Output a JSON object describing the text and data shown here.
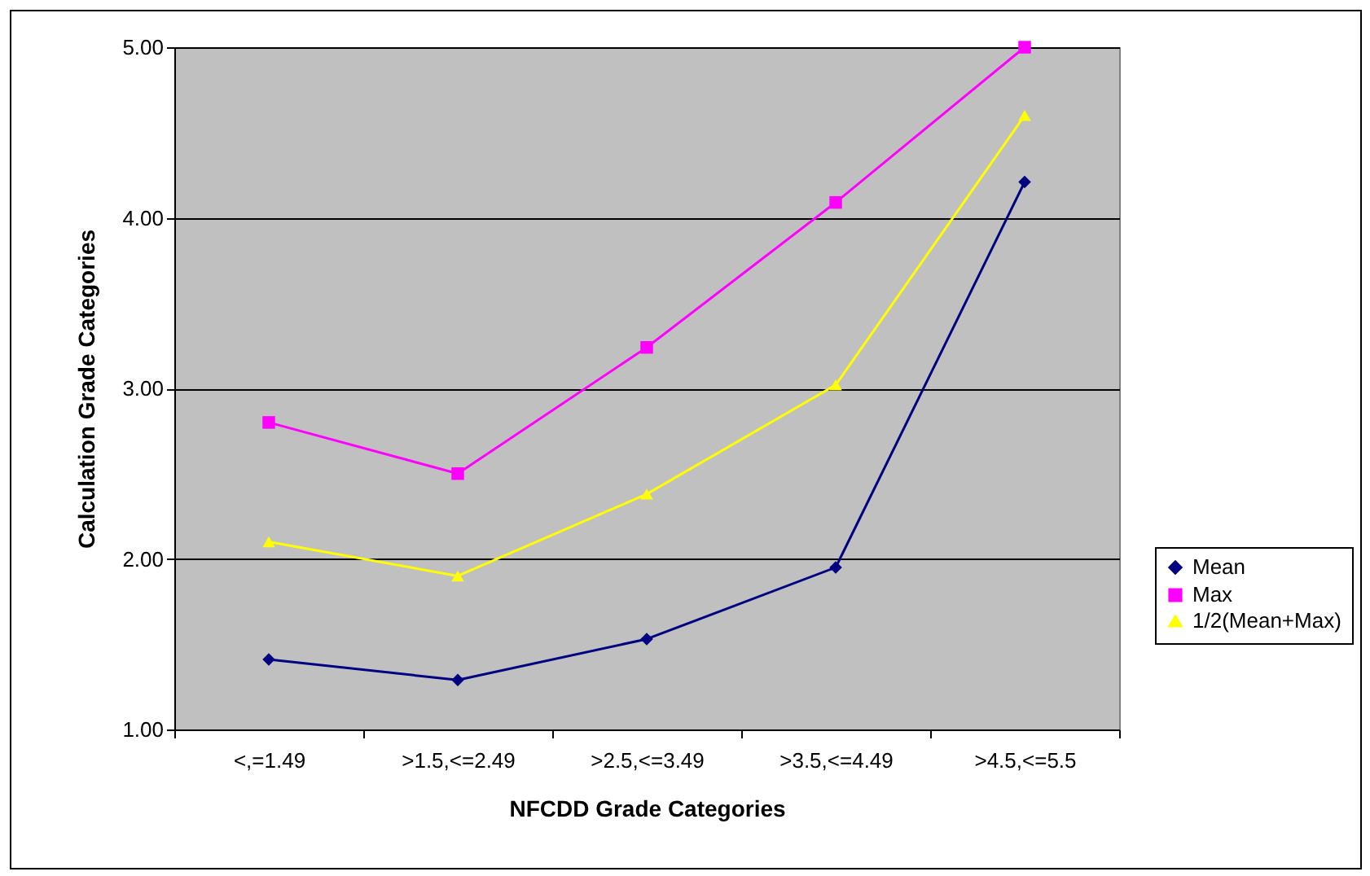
{
  "chart_data": {
    "type": "line",
    "xlabel": "NFCDD Grade Categories",
    "ylabel": "Calculation Grade Categories",
    "categories": [
      "<,=1.49",
      ">1.5,<=2.49",
      ">2.5,<=3.49",
      ">3.5,<=4.49",
      ">4.5,<=5.5"
    ],
    "series": [
      {
        "name": "Mean",
        "color": "#000080",
        "marker": "diamond",
        "values": [
          1.41,
          1.29,
          1.53,
          1.95,
          4.21
        ]
      },
      {
        "name": "Max",
        "color": "#ff00ff",
        "marker": "square",
        "values": [
          2.8,
          2.5,
          3.24,
          4.09,
          5.0
        ]
      },
      {
        "name": "1/2(Mean+Max)",
        "color": "#ffff00",
        "marker": "triangle",
        "values": [
          2.1,
          1.9,
          2.38,
          3.02,
          4.6
        ]
      }
    ],
    "ylim": [
      1,
      5
    ],
    "yticks": [
      {
        "value": 1,
        "label": "1.00"
      },
      {
        "value": 2,
        "label": "2.00"
      },
      {
        "value": 3,
        "label": "3.00"
      },
      {
        "value": 4,
        "label": "4.00"
      },
      {
        "value": 5,
        "label": "5.00"
      }
    ],
    "grid": "y",
    "legend": "right",
    "line_style": "solid"
  }
}
